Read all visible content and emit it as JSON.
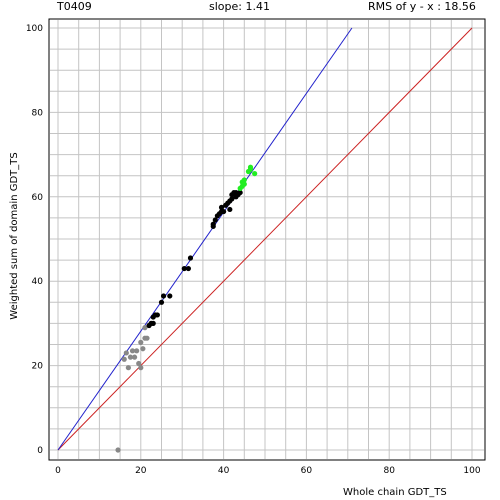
{
  "header": {
    "target": "T0409",
    "slope_text": "slope: 1.41",
    "rms_text": "RMS of  y - x : 18.56"
  },
  "chart_data": {
    "type": "scatter",
    "xlabel": "Whole chain GDT_TS",
    "ylabel": "Weighted sum of domain GDT_TS",
    "xlim": [
      0,
      100
    ],
    "ylim": [
      0,
      100
    ],
    "xticks": [
      "0",
      "20",
      "40",
      "60",
      "80",
      "100"
    ],
    "yticks": [
      "0",
      "20",
      "40",
      "60",
      "80",
      "100"
    ],
    "grid": true,
    "lines": [
      {
        "name": "diagonal",
        "color": "#cc2222",
        "x": [
          0,
          100
        ],
        "y": [
          0,
          100
        ]
      },
      {
        "name": "fit",
        "color": "#2222cc",
        "x": [
          0,
          71
        ],
        "y": [
          0,
          100
        ]
      }
    ],
    "series": [
      {
        "color": "#888888",
        "points": [
          [
            14.5,
            0
          ],
          [
            16,
            21.5
          ],
          [
            16.5,
            23
          ],
          [
            17,
            19.5
          ],
          [
            17.5,
            22
          ],
          [
            18,
            23.5
          ],
          [
            18.5,
            22
          ],
          [
            19,
            23.5
          ],
          [
            19.5,
            20.5
          ],
          [
            20,
            19.5
          ],
          [
            20,
            25.5
          ],
          [
            20.5,
            24
          ],
          [
            21,
            26.5
          ],
          [
            21.5,
            26.5
          ],
          [
            21,
            29
          ]
        ]
      },
      {
        "color": "#000000",
        "points": [
          [
            22,
            29.5
          ],
          [
            22.5,
            30
          ],
          [
            23,
            30
          ],
          [
            23,
            31.5
          ],
          [
            23.5,
            32
          ],
          [
            24,
            32
          ],
          [
            25,
            35
          ],
          [
            25.5,
            36.5
          ],
          [
            27,
            36.5
          ],
          [
            30.5,
            43
          ],
          [
            31.5,
            43
          ],
          [
            32,
            45.5
          ],
          [
            37.5,
            53
          ],
          [
            37.5,
            53.5
          ],
          [
            38,
            54.5
          ],
          [
            38.5,
            55.5
          ],
          [
            39,
            56
          ],
          [
            39.5,
            56.5
          ],
          [
            39.5,
            57.5
          ],
          [
            40,
            56.5
          ],
          [
            40.5,
            58
          ],
          [
            41,
            58.5
          ],
          [
            41.5,
            59
          ],
          [
            41.5,
            57
          ],
          [
            42,
            59.5
          ],
          [
            42,
            60.5
          ],
          [
            42.5,
            61
          ],
          [
            43,
            60
          ],
          [
            43,
            61
          ],
          [
            43.5,
            60.5
          ],
          [
            44,
            61
          ]
        ]
      },
      {
        "color": "#22ee22",
        "points": [
          [
            44,
            62
          ],
          [
            44.5,
            62.5
          ],
          [
            44.5,
            63.5
          ],
          [
            45,
            63
          ],
          [
            45,
            64
          ],
          [
            46,
            66
          ],
          [
            46.5,
            66.5
          ],
          [
            46.5,
            67
          ],
          [
            47.5,
            65.5
          ]
        ]
      }
    ]
  }
}
